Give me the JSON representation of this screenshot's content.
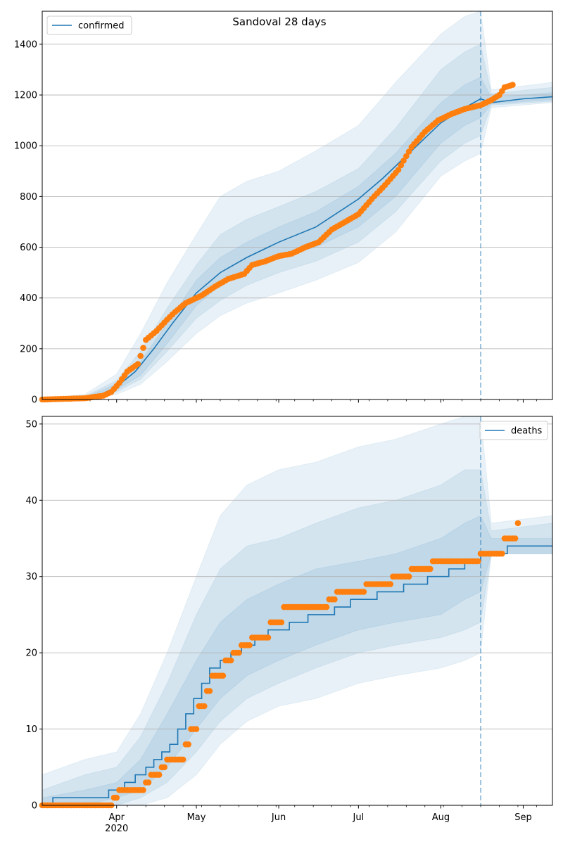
{
  "title": "Sandoval 28 days",
  "colors": {
    "model": "#1f77b4",
    "observed": "#ff7f0e",
    "grid": "#b0b0b0"
  },
  "x_axis": {
    "ticks": [
      {
        "date": "2020-04-01",
        "label": "Apr",
        "sub": "2020"
      },
      {
        "date": "2020-05-01",
        "label": "May",
        "sub": ""
      },
      {
        "date": "2020-06-01",
        "label": "Jun",
        "sub": ""
      },
      {
        "date": "2020-07-01",
        "label": "Jul",
        "sub": ""
      },
      {
        "date": "2020-08-01",
        "label": "Aug",
        "sub": ""
      },
      {
        "date": "2020-09-01",
        "label": "Sep",
        "sub": ""
      }
    ],
    "range": [
      "2020-03-04",
      "2020-09-12"
    ],
    "forecast_start": "2020-08-16"
  },
  "chart_data": [
    {
      "type": "line",
      "name": "confirmed",
      "legend": "confirmed",
      "legend_position": "upper-left",
      "ylim": [
        0,
        1530
      ],
      "yticks": [
        0,
        200,
        400,
        600,
        800,
        1000,
        1200,
        1400
      ],
      "grid": "horizontal",
      "model": {
        "x": [
          "2020-03-04",
          "2020-03-15",
          "2020-03-25",
          "2020-04-01",
          "2020-04-08",
          "2020-04-15",
          "2020-04-22",
          "2020-05-01",
          "2020-05-10",
          "2020-05-20",
          "2020-06-01",
          "2020-06-15",
          "2020-07-01",
          "2020-07-10",
          "2020-07-20",
          "2020-08-01",
          "2020-08-10",
          "2020-08-16",
          "2020-08-20",
          "2020-09-01",
          "2020-09-12"
        ],
        "y": [
          0,
          2,
          15,
          50,
          110,
          200,
          300,
          420,
          500,
          560,
          620,
          680,
          790,
          870,
          970,
          1090,
          1150,
          1185,
          1170,
          1185,
          1193
        ],
        "bands": [
          {
            "x": [
              "2020-03-04",
              "2020-03-20",
              "2020-04-01",
              "2020-04-10",
              "2020-04-20",
              "2020-05-01",
              "2020-05-10",
              "2020-05-20",
              "2020-06-01",
              "2020-06-15",
              "2020-07-01",
              "2020-07-15",
              "2020-08-01",
              "2020-08-10",
              "2020-08-16",
              "2020-08-20",
              "2020-09-12"
            ],
            "lo": [
              0,
              0,
              20,
              60,
              150,
              260,
              330,
              380,
              420,
              470,
              540,
              660,
              880,
              940,
              970,
              1150,
              1170
            ],
            "hi": [
              5,
              20,
              100,
              260,
              460,
              650,
              800,
              860,
              900,
              980,
              1080,
              1250,
              1440,
              1510,
              1530,
              1220,
              1250
            ]
          },
          {
            "x": [
              "2020-03-04",
              "2020-03-20",
              "2020-04-01",
              "2020-04-10",
              "2020-04-20",
              "2020-05-01",
              "2020-05-10",
              "2020-05-20",
              "2020-06-01",
              "2020-06-15",
              "2020-07-01",
              "2020-07-15",
              "2020-08-01",
              "2020-08-10",
              "2020-08-16",
              "2020-08-20",
              "2020-09-12"
            ],
            "lo": [
              0,
              0,
              30,
              80,
              190,
              320,
              390,
              450,
              500,
              545,
              620,
              740,
              940,
              1010,
              1040,
              1160,
              1175
            ],
            "hi": [
              3,
              12,
              75,
              190,
              360,
              530,
              650,
              710,
              760,
              820,
              910,
              1070,
              1300,
              1370,
              1400,
              1205,
              1230
            ]
          },
          {
            "x": [
              "2020-03-04",
              "2020-03-20",
              "2020-04-01",
              "2020-04-10",
              "2020-04-20",
              "2020-05-01",
              "2020-05-10",
              "2020-05-20",
              "2020-06-01",
              "2020-06-15",
              "2020-07-01",
              "2020-07-15",
              "2020-08-01",
              "2020-08-10",
              "2020-08-16",
              "2020-08-20",
              "2020-09-12"
            ],
            "lo": [
              0,
              1,
              38,
              95,
              220,
              370,
              450,
              510,
              560,
              600,
              680,
              800,
              1010,
              1080,
              1110,
              1165,
              1182
            ],
            "hi": [
              2,
              8,
              62,
              150,
              300,
              470,
              560,
              620,
              680,
              740,
              840,
              970,
              1170,
              1240,
              1270,
              1190,
              1210
            ]
          }
        ]
      },
      "observed": {
        "x": [
          "2020-03-04",
          "2020-03-20",
          "2020-03-27",
          "2020-03-30",
          "2020-04-02",
          "2020-04-05",
          "2020-04-09",
          "2020-04-12",
          "2020-04-16",
          "2020-04-20",
          "2020-04-23",
          "2020-04-27",
          "2020-05-03",
          "2020-05-08",
          "2020-05-13",
          "2020-05-19",
          "2020-05-22",
          "2020-05-27",
          "2020-06-01",
          "2020-06-06",
          "2020-06-11",
          "2020-06-16",
          "2020-06-21",
          "2020-06-26",
          "2020-07-01",
          "2020-07-06",
          "2020-07-11",
          "2020-07-16",
          "2020-07-21",
          "2020-07-26",
          "2020-07-31",
          "2020-08-05",
          "2020-08-10",
          "2020-08-16",
          "2020-08-20",
          "2020-08-23",
          "2020-08-25",
          "2020-08-28"
        ],
        "y": [
          0,
          5,
          15,
          30,
          65,
          110,
          140,
          235,
          270,
          315,
          345,
          380,
          410,
          445,
          475,
          495,
          530,
          545,
          565,
          575,
          600,
          620,
          670,
          700,
          730,
          790,
          845,
          905,
          995,
          1055,
          1100,
          1125,
          1145,
          1160,
          1180,
          1200,
          1230,
          1240
        ]
      }
    },
    {
      "type": "line",
      "name": "deaths",
      "legend": "deaths",
      "legend_position": "upper-right",
      "ylim": [
        0,
        51
      ],
      "yticks": [
        0,
        10,
        20,
        30,
        40,
        50
      ],
      "grid": "horizontal",
      "model": {
        "x": [
          "2020-03-04",
          "2020-03-08",
          "2020-03-29",
          "2020-04-04",
          "2020-04-08",
          "2020-04-12",
          "2020-04-15",
          "2020-04-18",
          "2020-04-21",
          "2020-04-24",
          "2020-04-27",
          "2020-04-30",
          "2020-05-03",
          "2020-05-06",
          "2020-05-10",
          "2020-05-14",
          "2020-05-18",
          "2020-05-23",
          "2020-05-28",
          "2020-06-05",
          "2020-06-12",
          "2020-06-22",
          "2020-06-28",
          "2020-07-08",
          "2020-07-18",
          "2020-07-27",
          "2020-08-04",
          "2020-08-10",
          "2020-08-16",
          "2020-08-26",
          "2020-09-12"
        ],
        "y": [
          0,
          1,
          2,
          3,
          4,
          5,
          6,
          7,
          8,
          10,
          12,
          14,
          16,
          18,
          19,
          20,
          21,
          22,
          23,
          24,
          25,
          26,
          27,
          28,
          29,
          30,
          31,
          32,
          33,
          34,
          34
        ],
        "bands": [
          {
            "x": [
              "2020-03-04",
              "2020-03-20",
              "2020-04-01",
              "2020-04-10",
              "2020-04-20",
              "2020-05-01",
              "2020-05-10",
              "2020-05-20",
              "2020-06-01",
              "2020-06-15",
              "2020-07-01",
              "2020-07-15",
              "2020-08-01",
              "2020-08-10",
              "2020-08-16",
              "2020-08-20",
              "2020-09-12"
            ],
            "lo": [
              0,
              0,
              0,
              0,
              1,
              4,
              8,
              11,
              13,
              14,
              16,
              17,
              18,
              19,
              20,
              33,
              33
            ],
            "hi": [
              4,
              6,
              7,
              12,
              20,
              30,
              38,
              42,
              44,
              45,
              47,
              48,
              50,
              51,
              51,
              37,
              38
            ]
          },
          {
            "x": [
              "2020-03-04",
              "2020-03-20",
              "2020-04-01",
              "2020-04-10",
              "2020-04-20",
              "2020-05-01",
              "2020-05-10",
              "2020-05-20",
              "2020-06-01",
              "2020-06-15",
              "2020-07-01",
              "2020-07-15",
              "2020-08-01",
              "2020-08-10",
              "2020-08-16",
              "2020-08-20",
              "2020-09-12"
            ],
            "lo": [
              0,
              0,
              0,
              1,
              3,
              7,
              11,
              14,
              16,
              18,
              20,
              21,
              22,
              23,
              24,
              33,
              33
            ],
            "hi": [
              2,
              4,
              5,
              9,
              16,
              25,
              31,
              34,
              35,
              37,
              39,
              40,
              42,
              44,
              44,
              36,
              37
            ]
          },
          {
            "x": [
              "2020-03-04",
              "2020-03-20",
              "2020-04-01",
              "2020-04-10",
              "2020-04-20",
              "2020-05-01",
              "2020-05-10",
              "2020-05-20",
              "2020-06-01",
              "2020-06-15",
              "2020-07-01",
              "2020-07-15",
              "2020-08-01",
              "2020-08-10",
              "2020-08-16",
              "2020-08-20",
              "2020-09-12"
            ],
            "lo": [
              0,
              0,
              1,
              2,
              5,
              10,
              14,
              17,
              19,
              21,
              23,
              24,
              25,
              27,
              28,
              33,
              33
            ],
            "hi": [
              1,
              2,
              3,
              6,
              12,
              19,
              24,
              27,
              29,
              31,
              32,
              33,
              35,
              37,
              38,
              35,
              35
            ]
          }
        ]
      },
      "observed": {
        "x": [
          "2020-03-04",
          "2020-03-31",
          "2020-04-02",
          "2020-04-04",
          "2020-04-12",
          "2020-04-14",
          "2020-04-18",
          "2020-04-20",
          "2020-04-22",
          "2020-04-27",
          "2020-04-29",
          "2020-05-02",
          "2020-05-05",
          "2020-05-07",
          "2020-05-12",
          "2020-05-15",
          "2020-05-18",
          "2020-05-22",
          "2020-05-29",
          "2020-06-03",
          "2020-06-20",
          "2020-06-23",
          "2020-07-04",
          "2020-07-14",
          "2020-07-21",
          "2020-07-25",
          "2020-07-29",
          "2020-08-16",
          "2020-08-20",
          "2020-08-25",
          "2020-08-30"
        ],
        "y": [
          0,
          1,
          2,
          2,
          3,
          4,
          5,
          6,
          6,
          8,
          10,
          13,
          15,
          17,
          19,
          20,
          21,
          22,
          24,
          26,
          27,
          28,
          29,
          30,
          31,
          31,
          32,
          33,
          33,
          35,
          37
        ]
      }
    }
  ]
}
